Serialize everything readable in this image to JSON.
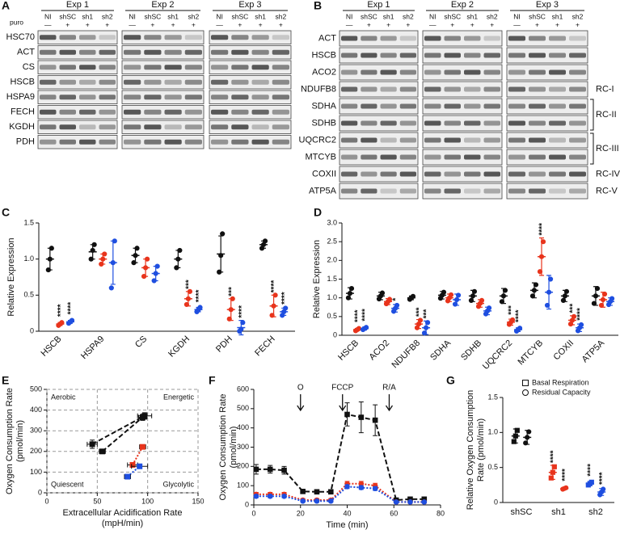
{
  "blots": [
    {
      "panel": "A",
      "experiments": [
        "Exp 1",
        "Exp 2",
        "Exp 3"
      ],
      "lanes": [
        "NI",
        "shSC",
        "sh1",
        "sh2"
      ],
      "treatment_label": "puro",
      "treatment": [
        "—",
        "+",
        "+",
        "+"
      ],
      "rows": [
        "HSC70",
        "ACT",
        "CS",
        "HSCB",
        "HSPA9",
        "FECH",
        "KGDH",
        "PDH"
      ]
    },
    {
      "panel": "B",
      "experiments": [
        "Exp 1",
        "Exp 2",
        "Exp 3"
      ],
      "lanes": [
        "NI",
        "shSC",
        "sh1",
        "sh2"
      ],
      "treatment": [
        "—",
        "+",
        "+",
        "+"
      ],
      "row_groups": [
        {
          "rows": [
            "ACT",
            "HSCB",
            "ACO2"
          ]
        },
        {
          "label": "RC-I",
          "rows": [
            "NDUFB8"
          ]
        },
        {
          "label": "RC-II",
          "rows": [
            "SDHA",
            "SDHB"
          ]
        },
        {
          "label": "RC-III",
          "rows": [
            "UQCRC2",
            "MTCYB"
          ]
        },
        {
          "label": "RC-IV",
          "rows": [
            "COXII"
          ]
        },
        {
          "label": "RC-V",
          "rows": [
            "ATP5A"
          ]
        }
      ]
    }
  ],
  "chart_data": [
    {
      "type": "dot",
      "panel": "C",
      "ylabel": "Relative Expression",
      "categories": [
        "HSCB",
        "HSPA9",
        "CS",
        "KGDH",
        "PDH",
        "FECH"
      ],
      "ylim": [
        0,
        1.5
      ],
      "yticks": [
        0,
        0.5,
        {
          "value": 1,
          "label": "1.0"
        },
        1.5
      ],
      "series": [
        {
          "color": "#111111",
          "values": [
            1.0,
            1.1,
            1.05,
            1.0,
            1.07,
            1.2
          ],
          "errors": [
            0.15,
            0.1,
            0.1,
            0.12,
            0.25,
            0.05
          ],
          "points": [
            [
              0.85,
              1.0,
              1.15
            ],
            [
              1.0,
              1.12,
              1.2
            ],
            [
              0.95,
              1.05,
              1.15
            ],
            [
              0.88,
              1.0,
              1.12
            ],
            [
              0.82,
              1.05,
              1.35
            ],
            [
              1.15,
              1.2,
              1.25
            ]
          ],
          "annotations": [
            null,
            null,
            null,
            null,
            null,
            null
          ]
        },
        {
          "color": "#e8341c",
          "values": [
            0.1,
            1.0,
            0.88,
            0.45,
            0.3,
            0.35
          ],
          "errors": [
            0.02,
            0.07,
            0.12,
            0.1,
            0.15,
            0.15
          ],
          "points": [
            [
              0.08,
              0.1,
              0.12
            ],
            [
              0.93,
              1.0,
              1.07
            ],
            [
              0.76,
              0.88,
              1.0
            ],
            [
              0.37,
              0.45,
              0.55
            ],
            [
              0.17,
              0.3,
              0.45
            ],
            [
              0.22,
              0.35,
              0.5
            ]
          ],
          "annotations": [
            "****",
            null,
            null,
            "***",
            "***",
            "****"
          ]
        },
        {
          "color": "#1f4fe0",
          "values": [
            0.13,
            0.95,
            0.8,
            0.3,
            0.05,
            0.27
          ],
          "errors": [
            0.02,
            0.3,
            0.1,
            0.03,
            0.1,
            0.05
          ],
          "points": [
            [
              0.11,
              0.13,
              0.15
            ],
            [
              0.6,
              0.95,
              1.25
            ],
            [
              0.7,
              0.8,
              0.9
            ],
            [
              0.27,
              0.3,
              0.33
            ],
            [
              0.0,
              0.03,
              0.12
            ],
            [
              0.22,
              0.27,
              0.32
            ]
          ],
          "annotations": [
            "****",
            null,
            null,
            "****",
            "****",
            "****"
          ]
        }
      ]
    },
    {
      "type": "dot",
      "panel": "D",
      "ylabel": "Relative Expression",
      "categories": [
        "HSCB",
        "ACO2",
        "NDUFB8",
        "SDHA",
        "SDHB",
        "UQCRC2",
        "MTCYB",
        "COXII",
        "ATP5A"
      ],
      "ylim": [
        0,
        3
      ],
      "yticks": [
        0,
        0.5,
        {
          "value": 1,
          "label": "1.0"
        },
        1.5,
        {
          "value": 2,
          "label": "2.0"
        },
        2.5,
        {
          "value": 3,
          "label": "3.0"
        }
      ],
      "series": [
        {
          "color": "#111111",
          "values": [
            1.12,
            1.05,
            1.0,
            1.07,
            1.05,
            1.05,
            1.2,
            1.05,
            1.05
          ],
          "errors": [
            0.15,
            0.1,
            0.05,
            0.1,
            0.15,
            0.2,
            0.2,
            0.15,
            0.25
          ],
          "points": [
            [
              1.0,
              1.12,
              1.25
            ],
            [
              0.97,
              1.05,
              1.13
            ],
            [
              0.96,
              1.0,
              1.04
            ],
            [
              0.99,
              1.07,
              1.15
            ],
            [
              0.93,
              1.05,
              1.17
            ],
            [
              0.9,
              1.05,
              1.2
            ],
            [
              1.05,
              1.2,
              1.35
            ],
            [
              0.93,
              1.05,
              1.17
            ],
            [
              0.85,
              1.05,
              1.25
            ]
          ],
          "annotations": [
            null,
            null,
            null,
            null,
            null,
            null,
            null,
            null,
            null
          ]
        },
        {
          "color": "#e8341c",
          "values": [
            0.15,
            0.9,
            0.3,
            1.0,
            0.85,
            0.35,
            2.1,
            0.4,
            0.95
          ],
          "errors": [
            0.03,
            0.08,
            0.12,
            0.1,
            0.1,
            0.08,
            0.5,
            0.12,
            0.2
          ],
          "points": [
            [
              0.12,
              0.15,
              0.18
            ],
            [
              0.84,
              0.9,
              0.96
            ],
            [
              0.2,
              0.3,
              0.4
            ],
            [
              0.92,
              1.0,
              1.08
            ],
            [
              0.77,
              0.85,
              0.93
            ],
            [
              0.29,
              0.35,
              0.41
            ],
            [
              1.7,
              2.1,
              2.5
            ],
            [
              0.3,
              0.4,
              0.5
            ],
            [
              0.8,
              0.95,
              1.1
            ]
          ],
          "annotations": [
            "****",
            null,
            "***",
            null,
            null,
            "***",
            "****",
            "***",
            null
          ]
        },
        {
          "color": "#1f4fe0",
          "values": [
            0.18,
            0.72,
            0.2,
            0.95,
            0.65,
            0.15,
            1.15,
            0.2,
            0.9
          ],
          "errors": [
            0.04,
            0.1,
            0.18,
            0.15,
            0.1,
            0.05,
            0.45,
            0.1,
            0.1
          ],
          "points": [
            [
              0.15,
              0.18,
              0.21
            ],
            [
              0.64,
              0.72,
              0.8
            ],
            [
              0.06,
              0.2,
              0.34
            ],
            [
              0.83,
              0.95,
              1.07
            ],
            [
              0.57,
              0.65,
              0.73
            ],
            [
              0.11,
              0.15,
              0.19
            ],
            [
              0.8,
              1.15,
              1.5
            ],
            [
              0.12,
              0.2,
              0.28
            ],
            [
              0.82,
              0.9,
              0.98
            ]
          ],
          "annotations": [
            "****",
            "*",
            "***",
            null,
            null,
            "****",
            null,
            "****",
            null
          ]
        }
      ]
    },
    {
      "type": "scatter",
      "panel": "E",
      "ylabel": [
        "Oxygen Consumption Rate",
        "(pmol/min)"
      ],
      "xlabel": [
        "Extracellular Acidification Rate",
        "(mpH/min)"
      ],
      "xlim": [
        0,
        150
      ],
      "xticks": [
        0,
        50,
        100,
        150
      ],
      "ylim": [
        0,
        500
      ],
      "yticks": [
        0,
        100,
        200,
        300,
        400,
        500
      ],
      "grid": true,
      "quadrants": [
        "Aerobic",
        "Energetic",
        "Quiescent",
        "Glycolytic"
      ],
      "series": [
        {
          "color": "#111111",
          "line_style": "dashed",
          "x": [
            45,
            97
          ],
          "y": [
            235,
            372
          ],
          "xerr": [
            5,
            7
          ],
          "yerr": [
            20,
            15
          ]
        },
        {
          "color": "#111111",
          "line_style": "dashed",
          "x": [
            55,
            95
          ],
          "y": [
            200,
            365
          ],
          "xerr": [
            3,
            4
          ],
          "yerr": [
            5,
            15
          ]
        },
        {
          "color": "#e8341c",
          "line_style": "dotted",
          "x": [
            85,
            95
          ],
          "y": [
            135,
            222
          ],
          "xerr": [
            5,
            3
          ],
          "yerr": [
            10,
            8
          ]
        },
        {
          "color": "#1f4fe0",
          "line_style": "dotted",
          "x": [
            80,
            92
          ],
          "y": [
            78,
            128
          ],
          "xerr": [
            3,
            8
          ],
          "yerr": [
            8,
            10
          ]
        }
      ]
    },
    {
      "type": "line",
      "panel": "F",
      "ylabel": [
        "Oxygen Consumption Rate",
        "(pmol/min)"
      ],
      "xlabel": "Time (min)",
      "xlim": [
        0,
        80
      ],
      "xticks": [
        0,
        20,
        40,
        60,
        80
      ],
      "ylim": [
        0,
        600
      ],
      "yticks": [
        0,
        100,
        200,
        300,
        400,
        500,
        600
      ],
      "events": [
        {
          "label": "O",
          "x": 20
        },
        {
          "label": "FCCP",
          "x": 38
        },
        {
          "label": "R/A",
          "x": 58
        }
      ],
      "x": [
        1,
        7,
        13,
        21,
        27,
        33,
        40,
        46,
        52,
        61,
        67,
        73
      ],
      "series": [
        {
          "color": "#111111",
          "line_style": "dashed",
          "marker": "square",
          "values": [
            185,
            185,
            180,
            70,
            68,
            68,
            470,
            455,
            440,
            25,
            30,
            30
          ],
          "errors": [
            25,
            20,
            20,
            10,
            10,
            10,
            60,
            80,
            80,
            10,
            10,
            10
          ]
        },
        {
          "color": "#e8341c",
          "line_style": "dotted",
          "marker": "circle",
          "values": [
            55,
            55,
            55,
            25,
            25,
            25,
            110,
            110,
            100,
            15,
            15,
            15
          ],
          "errors": [
            10,
            10,
            10,
            8,
            8,
            8,
            12,
            12,
            12,
            6,
            6,
            6
          ]
        },
        {
          "color": "#1f4fe0",
          "line_style": "dotted",
          "marker": "circle",
          "values": [
            45,
            45,
            45,
            20,
            20,
            20,
            95,
            90,
            85,
            15,
            15,
            15
          ],
          "errors": [
            8,
            8,
            8,
            6,
            6,
            6,
            10,
            10,
            10,
            5,
            5,
            5
          ]
        }
      ]
    },
    {
      "type": "dot",
      "panel": "G",
      "ylabel": [
        "Relative Oxygen Consumption",
        "Rate (pmol/min)"
      ],
      "categories": [
        "shSC",
        "sh1",
        "sh2"
      ],
      "colors": [
        "#111111",
        "#e8341c",
        "#1f4fe0"
      ],
      "legend": "top-right",
      "ylim": [
        0,
        1.5
      ],
      "yticks": [
        0,
        0.5,
        {
          "value": 1,
          "label": "1.0"
        },
        1.5
      ],
      "series": [
        {
          "name": "Basal Respiration",
          "marker": "square",
          "values": [
            0.95,
            0.43,
            0.27
          ],
          "errors": [
            0.1,
            0.1,
            0.03
          ],
          "points": [
            [
              0.87,
              0.95,
              1.03
            ],
            [
              0.35,
              0.43,
              0.51
            ],
            [
              0.25,
              0.27,
              0.29
            ]
          ],
          "annotations": [
            null,
            "****",
            "****"
          ]
        },
        {
          "name": "Residual Capacity",
          "marker": "circle",
          "values": [
            0.93,
            0.2,
            0.15
          ],
          "errors": [
            0.1,
            0.01,
            0.05
          ],
          "points": [
            [
              0.85,
              0.93,
              1.01
            ],
            [
              0.19,
              0.2,
              0.21
            ],
            [
              0.11,
              0.15,
              0.19
            ]
          ],
          "annotations": [
            null,
            "****",
            "****"
          ]
        }
      ]
    }
  ]
}
